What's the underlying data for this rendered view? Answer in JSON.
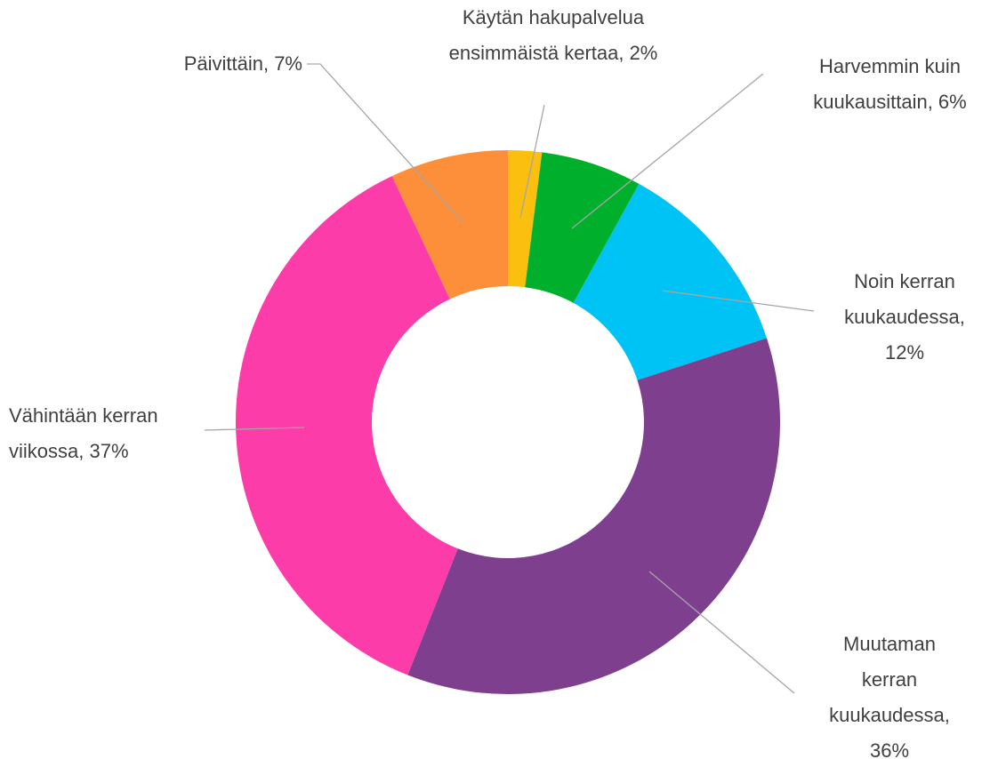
{
  "chart_data": {
    "type": "donut",
    "values": [
      2,
      6,
      12,
      36,
      37,
      7
    ],
    "value_labels": [
      "Käytän hakupalvelua ensimmäistä kertaa, 2%",
      "Harvemmin kuin kuukausittain, 6%",
      "Noin kerran kuukaudessa, 12%",
      "Muutaman kerran kuukaudessa, 36%",
      "Vähintään kerran viikossa, 37%",
      "Päivittäin, 7%"
    ],
    "colors": [
      "#fbbf0f",
      "#00b02c",
      "#00c3f5",
      "#7e3f8f",
      "#fc3ca8",
      "#fd8f3a"
    ]
  }
}
